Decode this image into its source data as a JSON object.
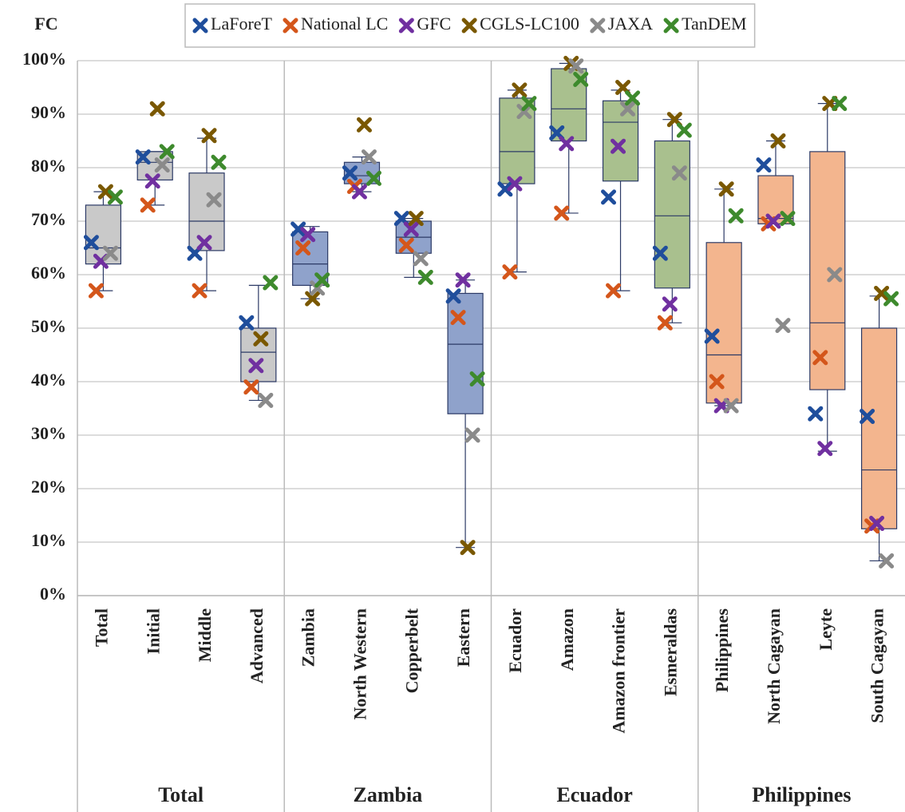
{
  "chart_data": {
    "type": "box",
    "y_label": "FC",
    "ylim": [
      0,
      100
    ],
    "yticks": [
      {
        "value": 0,
        "label": "0%"
      },
      {
        "value": 10,
        "label": "10%"
      },
      {
        "value": 20,
        "label": "20%"
      },
      {
        "value": 30,
        "label": "30%"
      },
      {
        "value": 40,
        "label": "40%"
      },
      {
        "value": 50,
        "label": "50%"
      },
      {
        "value": 60,
        "label": "60%"
      },
      {
        "value": 70,
        "label": "70%"
      },
      {
        "value": 80,
        "label": "80%"
      },
      {
        "value": 90,
        "label": "90%"
      },
      {
        "value": 100,
        "label": "100%"
      }
    ],
    "grid": true,
    "groups": [
      {
        "label": "Total",
        "color": "#c9c9c9",
        "categories": [
          "Total",
          "Initial",
          "Middle",
          "Advanced"
        ]
      },
      {
        "label": "Zambia",
        "color": "#8fa2cb",
        "categories": [
          "Zambia",
          "North Western",
          "Copperbelt",
          "Eastern"
        ]
      },
      {
        "label": "Ecuador",
        "color": "#a9c08e",
        "categories": [
          "Ecuador",
          "Amazon",
          "Amazon frontier",
          "Esmeraldas"
        ]
      },
      {
        "label": "Philippines",
        "color": "#f3b58e",
        "categories": [
          "Philippines",
          "North Cagayan",
          "Leyte",
          "South Cagayan"
        ]
      }
    ],
    "boxes": [
      {
        "min": 57,
        "q1": 62,
        "median": 65,
        "q3": 73,
        "max": 75.5
      },
      {
        "min": 73,
        "q1": 77.7,
        "median": 81,
        "q3": 83,
        "max": 83
      },
      {
        "min": 57,
        "q1": 64.5,
        "median": 70,
        "q3": 79,
        "max": 85.5
      },
      {
        "min": 36.5,
        "q1": 40,
        "median": 45.5,
        "q3": 50,
        "max": 58
      },
      {
        "min": 55.5,
        "q1": 58,
        "median": 62,
        "q3": 68,
        "max": 69
      },
      {
        "min": 75.5,
        "q1": 77,
        "median": 78.5,
        "q3": 81,
        "max": 82
      },
      {
        "min": 59.5,
        "q1": 64,
        "median": 67,
        "q3": 70,
        "max": 70.5
      },
      {
        "min": 9,
        "q1": 34,
        "median": 47,
        "q3": 56.5,
        "max": 59
      },
      {
        "min": 60.5,
        "q1": 77,
        "median": 83,
        "q3": 93,
        "max": 94.5
      },
      {
        "min": 71.5,
        "q1": 85,
        "median": 91,
        "q3": 98.5,
        "max": 99.5
      },
      {
        "min": 57,
        "q1": 77.5,
        "median": 88.5,
        "q3": 92.5,
        "max": 94.5
      },
      {
        "min": 51,
        "q1": 57.5,
        "median": 71,
        "q3": 85,
        "max": 89
      },
      {
        "min": 35.5,
        "q1": 36,
        "median": 45,
        "q3": 66,
        "max": 76
      },
      {
        "min": 69.5,
        "q1": 69.5,
        "median": 70.5,
        "q3": 78.5,
        "max": 85
      },
      {
        "min": 27,
        "q1": 38.5,
        "median": 51,
        "q3": 83,
        "max": 92
      },
      {
        "min": 6.5,
        "q1": 12.5,
        "median": 23.5,
        "q3": 50,
        "max": 56
      }
    ],
    "series": [
      {
        "name": "LaForeT",
        "color": "#1f4e9c",
        "values": [
          66,
          82,
          64,
          51,
          68.5,
          79,
          70.5,
          56,
          76,
          86.5,
          74.5,
          64,
          48.5,
          80.5,
          34,
          33.5
        ]
      },
      {
        "name": "National LC",
        "color": "#d4561b",
        "values": [
          57,
          73,
          57,
          39,
          65,
          76.5,
          65.5,
          52,
          60.5,
          71.5,
          57,
          51,
          40,
          69.5,
          44.5,
          13
        ]
      },
      {
        "name": "GFC",
        "color": "#7030a0",
        "values": [
          62.5,
          77.5,
          66,
          43,
          67.5,
          75.5,
          68.5,
          59,
          77,
          84.5,
          84,
          54.5,
          35.5,
          70,
          27.5,
          13.5
        ]
      },
      {
        "name": "CGLS-LC100",
        "color": "#7a5800",
        "values": [
          75.5,
          91,
          86,
          48,
          55.5,
          88,
          70.5,
          9,
          94.5,
          99.5,
          95,
          89,
          76,
          85,
          92,
          56.5
        ]
      },
      {
        "name": "JAXA",
        "color": "#8a8a8a",
        "values": [
          64,
          80.5,
          74,
          36.5,
          57.5,
          82,
          63,
          30,
          90.5,
          99,
          91,
          79,
          35.5,
          50.5,
          60,
          6.5
        ]
      },
      {
        "name": "TanDEM",
        "color": "#3e8a2d",
        "values": [
          74.5,
          83,
          81,
          58.5,
          59,
          78,
          59.5,
          40.5,
          92,
          96.5,
          93,
          87,
          71,
          70.5,
          92,
          55.5
        ]
      }
    ]
  }
}
